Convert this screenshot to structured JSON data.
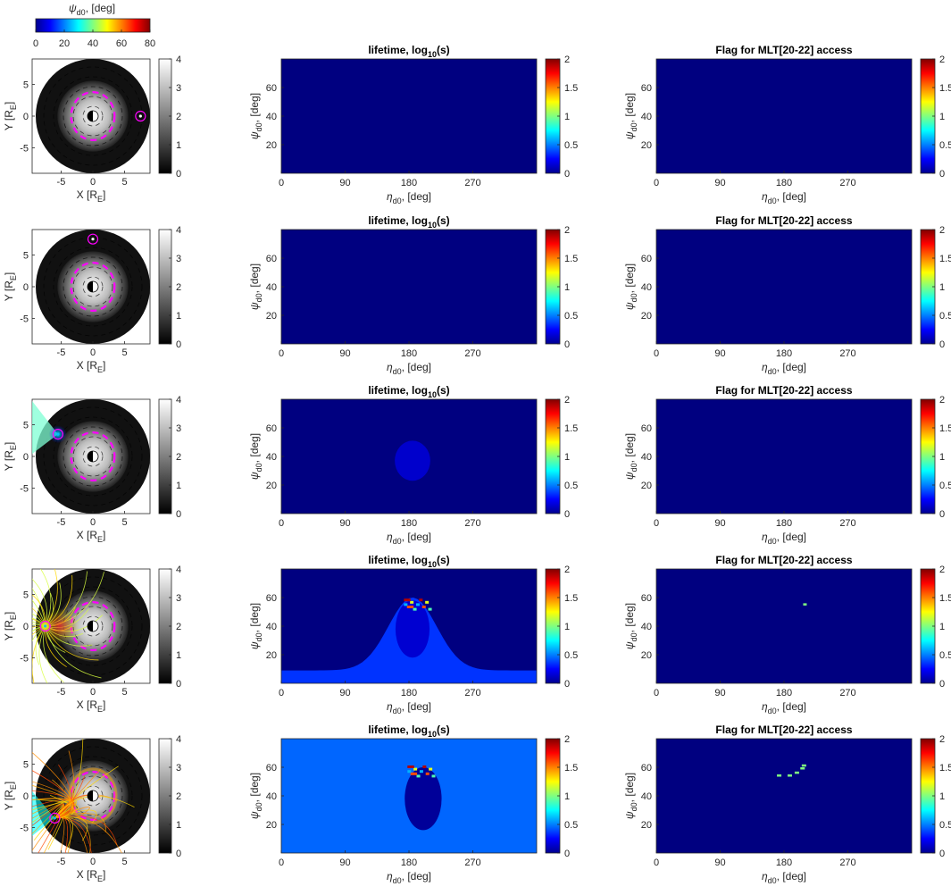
{
  "top_colorbar": {
    "label_main": "ψ",
    "label_sub": "d0",
    "label_tail": ", [deg]",
    "ticks": [
      "0",
      "20",
      "40",
      "60",
      "80"
    ],
    "range": [
      0,
      80
    ],
    "colormap": "jet"
  },
  "orbit_panels": {
    "xlabel_main": "X [R",
    "xlabel_sub": "E",
    "xlabel_tail": "]",
    "ylabel_main": "Y [R",
    "ylabel_sub": "E",
    "ylabel_tail": "]",
    "x_ticks": [
      "-5",
      "0",
      "5"
    ],
    "y_ticks": [
      "5",
      "0",
      "-5"
    ],
    "colorbar_ticks": [
      "4",
      "3",
      "2",
      "1",
      "0"
    ],
    "colorbar_range": [
      0,
      4
    ],
    "colorbar_colormap": "gray",
    "marker_color": "#ff00ff",
    "boundary_color": "#ff00ff"
  },
  "maps": {
    "lifetime_title_main": "lifetime, log",
    "lifetime_title_sub": "10",
    "lifetime_title_tail": "(s)",
    "flag_title": "Flag for MLT[20-22] access",
    "xlabel_main": "η",
    "xlabel_sub": "d0",
    "xlabel_tail": ", [deg]",
    "ylabel_main": "ψ",
    "ylabel_sub": "d0",
    "ylabel_tail": ", [deg]",
    "x_ticks": [
      "0",
      "90",
      "180",
      "270"
    ],
    "y_ticks": [
      "60",
      "40",
      "20"
    ],
    "colorbar_ticks": [
      "2",
      "1.5",
      "1",
      "0.5",
      "0"
    ],
    "colorbar_range": [
      0,
      2
    ],
    "colormap": "jet",
    "background_color": "#00008f"
  },
  "chart_data": [
    {
      "type": "heatmap",
      "panel": "row1-orbit",
      "marker_position_RE": [
        7.5,
        0
      ],
      "xlim": [
        -9,
        9
      ],
      "ylim": [
        -9,
        9
      ]
    },
    {
      "type": "heatmap",
      "panel": "row1-lifetime",
      "x": "eta_d0 [deg]",
      "y": "psi_d0 [deg]",
      "xlim": [
        0,
        360
      ],
      "ylim": [
        0,
        80
      ],
      "value_everywhere": 0
    },
    {
      "type": "heatmap",
      "panel": "row1-flag",
      "xlim": [
        0,
        360
      ],
      "ylim": [
        0,
        80
      ],
      "value_everywhere": 0
    },
    {
      "type": "heatmap",
      "panel": "row2-orbit",
      "marker_position_RE": [
        0,
        7.5
      ],
      "xlim": [
        -9,
        9
      ],
      "ylim": [
        -9,
        9
      ]
    },
    {
      "type": "heatmap",
      "panel": "row2-lifetime",
      "xlim": [
        0,
        360
      ],
      "ylim": [
        0,
        80
      ],
      "value_everywhere": 0
    },
    {
      "type": "heatmap",
      "panel": "row2-flag",
      "xlim": [
        0,
        360
      ],
      "ylim": [
        0,
        80
      ],
      "value_everywhere": 0
    },
    {
      "type": "heatmap",
      "panel": "row3-orbit",
      "marker_position_RE": [
        -5.5,
        3.5
      ],
      "xlim": [
        -9,
        9
      ],
      "ylim": [
        -9,
        9
      ]
    },
    {
      "type": "heatmap",
      "panel": "row3-lifetime",
      "xlim": [
        0,
        360
      ],
      "ylim": [
        0,
        80
      ],
      "value_background": 0,
      "features": [
        {
          "shape": "disk",
          "center": [
            185,
            37
          ],
          "radius_deg": [
            25,
            14
          ],
          "value": 0.15
        }
      ]
    },
    {
      "type": "heatmap",
      "panel": "row3-flag",
      "xlim": [
        0,
        360
      ],
      "ylim": [
        0,
        80
      ],
      "value_everywhere": 0
    },
    {
      "type": "heatmap",
      "panel": "row4-orbit",
      "marker_position_RE": [
        -7.5,
        0
      ],
      "xlim": [
        -9,
        9
      ],
      "ylim": [
        -9,
        9
      ]
    },
    {
      "type": "heatmap",
      "panel": "row4-lifetime",
      "xlim": [
        0,
        360
      ],
      "ylim": [
        0,
        80
      ],
      "value_background": 0,
      "features": [
        {
          "shape": "bell",
          "center": 185,
          "peak_psi": 60,
          "base_psi": 9,
          "value": 0.35
        },
        {
          "shape": "hotspot",
          "center": [
            190,
            56
          ],
          "value": 1.7
        }
      ]
    },
    {
      "type": "heatmap",
      "panel": "row4-flag",
      "xlim": [
        0,
        360
      ],
      "ylim": [
        0,
        80
      ],
      "value_background": 0,
      "features": [
        {
          "shape": "pixel",
          "center": [
            207,
            56
          ],
          "value": 1
        }
      ]
    },
    {
      "type": "heatmap",
      "panel": "row5-orbit",
      "marker_position_RE": [
        -6.0,
        -3.5
      ],
      "xlim": [
        -9,
        9
      ],
      "ylim": [
        -9,
        9
      ]
    },
    {
      "type": "heatmap",
      "panel": "row5-lifetime",
      "xlim": [
        0,
        360
      ],
      "ylim": [
        0,
        80
      ],
      "value_background": 0.45,
      "features": [
        {
          "shape": "disk",
          "center": [
            200,
            38
          ],
          "value": 0.05
        },
        {
          "shape": "hotspot",
          "center": [
            195,
            58
          ],
          "value": 1.8
        }
      ]
    },
    {
      "type": "heatmap",
      "panel": "row5-flag",
      "xlim": [
        0,
        360
      ],
      "ylim": [
        0,
        80
      ],
      "value_background": 0,
      "features": [
        {
          "shape": "pixels",
          "points": [
            [
              170,
              55
            ],
            [
              185,
              55
            ],
            [
              195,
              57
            ],
            [
              203,
              60
            ],
            [
              205,
              62
            ]
          ],
          "value": 1
        }
      ]
    }
  ]
}
